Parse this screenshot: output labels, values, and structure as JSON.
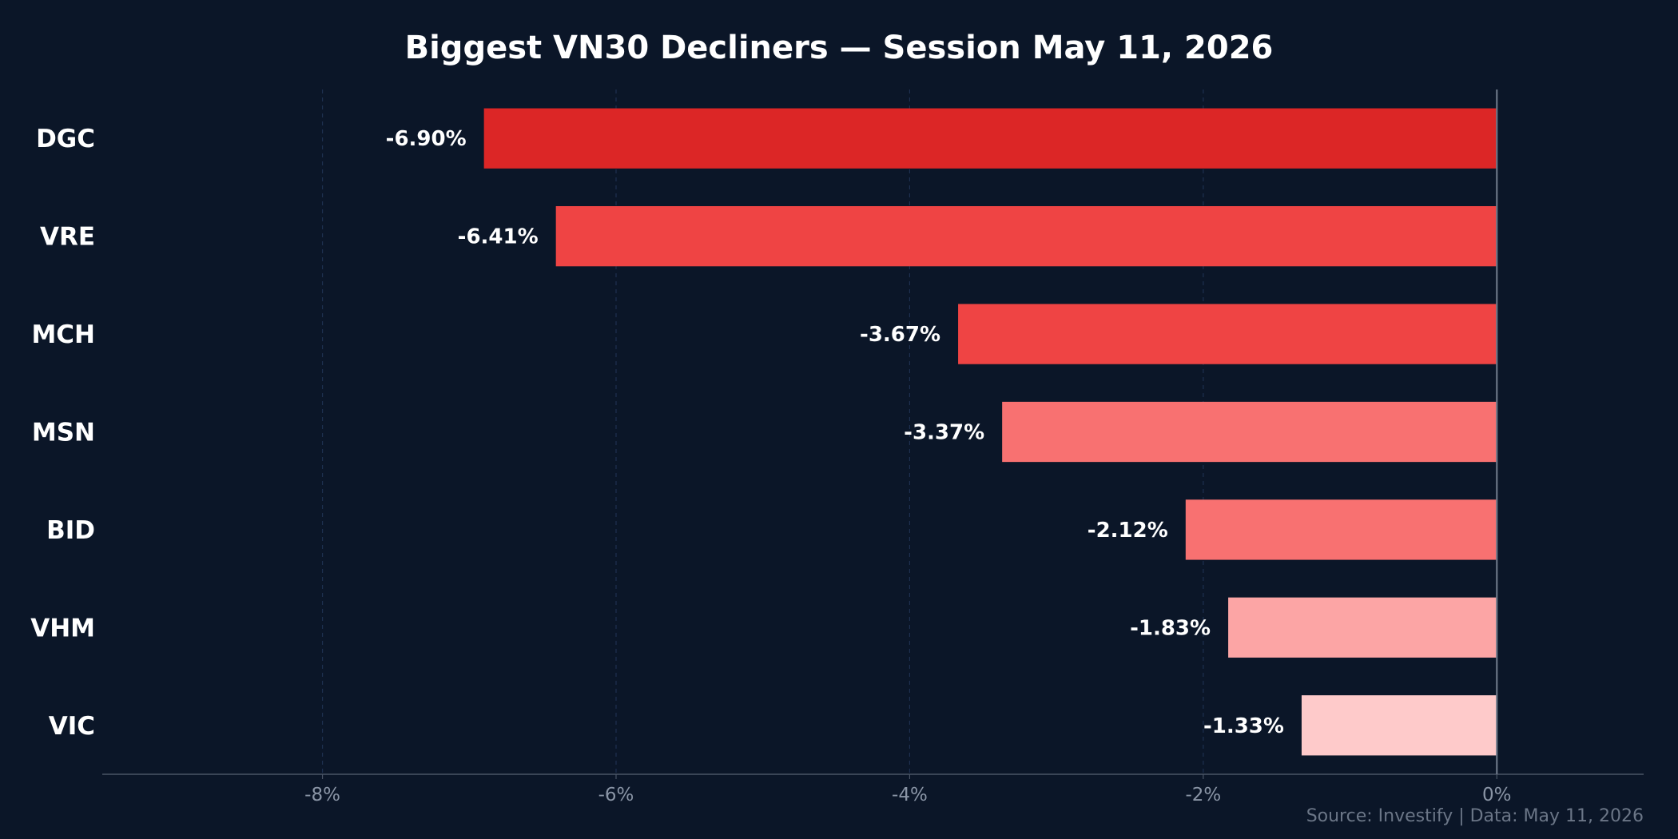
{
  "chart_data": {
    "type": "bar",
    "orientation": "horizontal",
    "title": "Biggest VN30 Decliners — Session May 11, 2026",
    "categories": [
      "DGC",
      "VRE",
      "MCH",
      "MSN",
      "BID",
      "VHM",
      "VIC"
    ],
    "values": [
      -6.9,
      -6.41,
      -3.67,
      -3.37,
      -2.12,
      -1.83,
      -1.33
    ],
    "value_labels": [
      "-6.90%",
      "-6.41%",
      "-3.67%",
      "-3.37%",
      "-2.12%",
      "-1.83%",
      "-1.33%"
    ],
    "bar_colors": [
      "#dc2626",
      "#ef4444",
      "#ef4444",
      "#f87171",
      "#f87171",
      "#fca5a5",
      "#fecaca"
    ],
    "xlim": [
      -9.5,
      1
    ],
    "xticks": [
      -8,
      -6,
      -4,
      -2,
      0
    ],
    "xtick_labels": [
      "-8%",
      "-6%",
      "-4%",
      "-2%",
      "0%"
    ],
    "xlabel": "",
    "ylabel": "",
    "grid": "vertical dashed",
    "legend": "none",
    "source_note": "Source: Investify | Data: May 11, 2026"
  },
  "colors": {
    "background": "#0b1628",
    "grid": "#1e3050",
    "axis": "#4a5566",
    "zero_line": "#6b7687",
    "text": "#ffffff",
    "tick_text": "#8a95a6",
    "note_text": "#6b7687"
  }
}
